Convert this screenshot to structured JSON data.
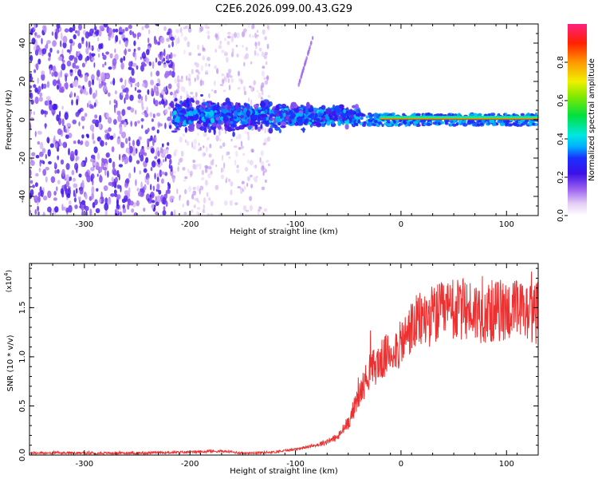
{
  "title": "C2E6.2026.099.00.43.G29",
  "chart_data": [
    {
      "type": "heatmap",
      "xlabel": "Height of straight line (km)",
      "ylabel": "Frequency (Hz)",
      "xlim": [
        -352,
        130
      ],
      "ylim": [
        -50,
        50
      ],
      "xticks": [
        -300,
        -200,
        -100,
        0,
        100
      ],
      "yticks": [
        -40,
        -20,
        0,
        20,
        40
      ],
      "colorbar": {
        "label": "Normalized spectral amplitude",
        "range": [
          0,
          1
        ],
        "ticks": [
          "0.0",
          "0.2",
          "0.4",
          "0.6",
          "0.8"
        ]
      },
      "regions": [
        {
          "x_range": [
            -352,
            -215
          ],
          "freq_range": [
            -50,
            50
          ],
          "amplitude": "low (0.1-0.2), broad noise"
        },
        {
          "x_range": [
            -215,
            -130
          ],
          "freq_range": [
            -50,
            50
          ],
          "amplitude": "very low, faint scatter"
        },
        {
          "x_range": [
            -215,
            -40
          ],
          "freq_range": [
            -12,
            15
          ],
          "amplitude": "0.15-0.35, central band"
        },
        {
          "x_range": [
            -40,
            130
          ],
          "freq_range": [
            -3,
            3
          ],
          "amplitude": "0.3-0.9, narrow line near 0 Hz"
        }
      ]
    },
    {
      "type": "line",
      "xlabel": "Height of straight line (km)",
      "ylabel": "SNR (10 * v/v)",
      "scale_label": "(x10",
      "scale_exp": "4",
      "xlim": [
        -352,
        130
      ],
      "ylim": [
        0,
        1.95
      ],
      "xticks": [
        -300,
        -200,
        -100,
        0,
        100
      ],
      "yticks": [
        "0.0",
        "0.5",
        "1.0",
        "1.5"
      ],
      "series": [
        {
          "name": "SNR",
          "color": "#ef3030",
          "x": [
            -352,
            -300,
            -250,
            -200,
            -170,
            -150,
            -120,
            -100,
            -80,
            -60,
            -50,
            -40,
            -30,
            -20,
            -10,
            0,
            10,
            20,
            30,
            40,
            60,
            80,
            100,
            120,
            130
          ],
          "y": [
            0.02,
            0.02,
            0.02,
            0.03,
            0.04,
            0.02,
            0.03,
            0.06,
            0.1,
            0.18,
            0.33,
            0.6,
            0.85,
            0.95,
            1.05,
            1.12,
            1.3,
            1.38,
            1.42,
            1.45,
            1.48,
            1.45,
            1.48,
            1.45,
            1.45
          ]
        }
      ]
    }
  ]
}
